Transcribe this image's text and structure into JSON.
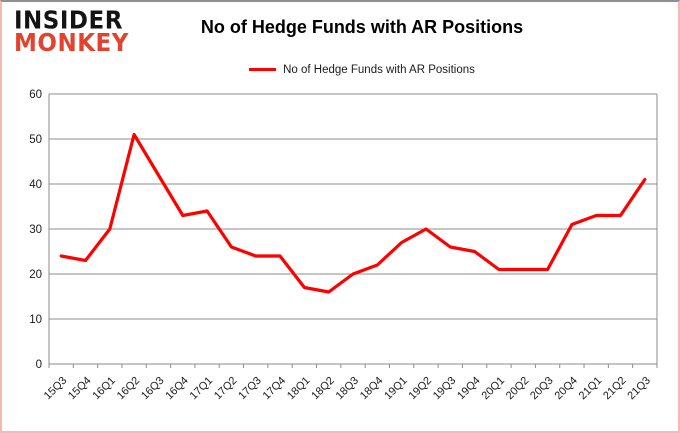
{
  "logo": {
    "line1": "INSIDER",
    "line2": "MONKEY"
  },
  "header": {
    "title": "No of Hedge Funds with AR Positions"
  },
  "legend": {
    "label": "No of Hedge Funds with AR Positions",
    "color": "#ff0000"
  },
  "chart_data": {
    "type": "line",
    "title": "No of Hedge Funds with AR Positions",
    "categories": [
      "15Q3",
      "15Q4",
      "16Q1",
      "16Q2",
      "16Q3",
      "16Q4",
      "17Q1",
      "17Q2",
      "17Q3",
      "17Q4",
      "18Q1",
      "18Q2",
      "18Q3",
      "18Q4",
      "19Q1",
      "19Q2",
      "19Q3",
      "19Q4",
      "20Q1",
      "20Q2",
      "20Q3",
      "20Q4",
      "21Q1",
      "21Q2",
      "21Q3"
    ],
    "values": [
      24,
      23,
      30,
      51,
      42,
      33,
      34,
      26,
      24,
      24,
      17,
      16,
      20,
      22,
      27,
      30,
      26,
      25,
      21,
      21,
      21,
      31,
      33,
      33,
      41
    ],
    "series_name": "No of Hedge Funds with AR Positions",
    "xlabel": "",
    "ylabel": "",
    "ylim": [
      0,
      60
    ],
    "yticks": [
      0,
      10,
      20,
      30,
      40,
      50,
      60
    ],
    "grid": true,
    "legend_position": "top",
    "line_color": "#ff0000",
    "gridline_color": "#8c8c8c",
    "axis_text_color": "#1a1a1a"
  }
}
